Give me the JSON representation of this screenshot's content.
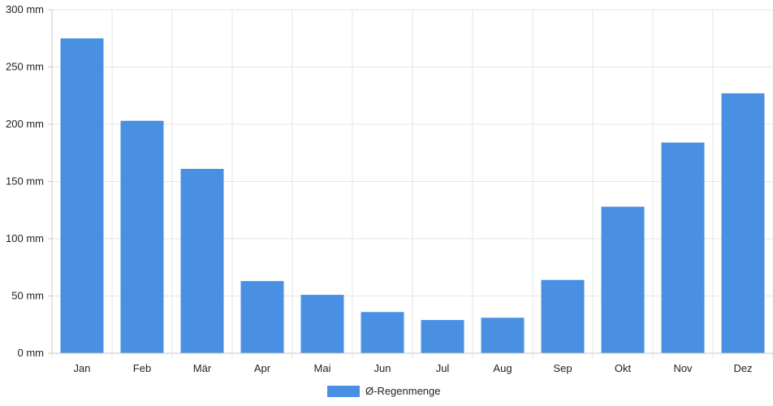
{
  "chart_data": {
    "type": "bar",
    "categories": [
      "Jan",
      "Feb",
      "Mär",
      "Apr",
      "Mai",
      "Jun",
      "Jul",
      "Aug",
      "Sep",
      "Okt",
      "Nov",
      "Dez"
    ],
    "series": [
      {
        "name": "Ø-Regenmenge",
        "values": [
          275,
          203,
          161,
          63,
          51,
          36,
          29,
          31,
          64,
          128,
          184,
          227
        ]
      }
    ],
    "y_unit": "mm",
    "ylim": [
      0,
      300
    ],
    "y_ticks": [
      0,
      50,
      100,
      150,
      200,
      250,
      300
    ],
    "y_tick_labels": [
      "0 mm",
      "50 mm",
      "100 mm",
      "150 mm",
      "200 mm",
      "250 mm",
      "300 mm"
    ],
    "grid": true,
    "legend_position": "bottom",
    "colors": {
      "bar": "#4a90e2",
      "grid": "#e6e6e6",
      "axis": "#c8c8c8"
    }
  }
}
